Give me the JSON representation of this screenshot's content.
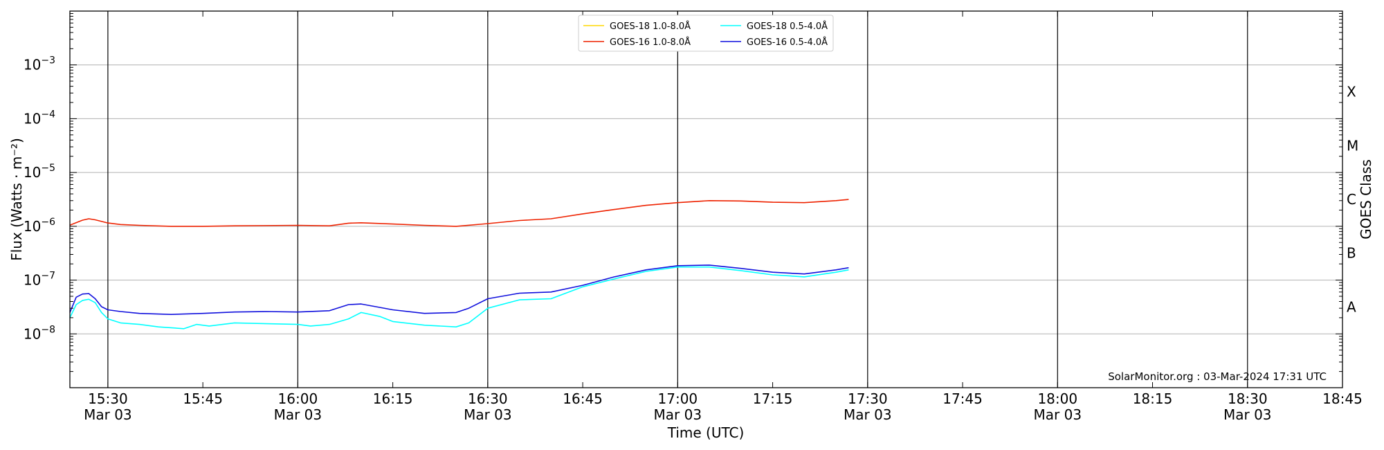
{
  "chart_data": {
    "type": "line",
    "xlabel": "Time (UTC)",
    "ylabel": "Flux (Watts · m⁻²)",
    "ylabel_right": "GOES Class",
    "credit": "SolarMonitor.org : 03-Mar-2024 17:31 UTC",
    "x_range": [
      "15:24",
      "18:45"
    ],
    "y_scale": "log",
    "ylim": [
      1e-09,
      0.01
    ],
    "grid": "horizontal lines at decades 1e-8..1e-3; vertical lines every 30 min",
    "legend_position": "top-center",
    "x_ticks": [
      {
        "t": "15:30",
        "label": "15:30",
        "date": "Mar 03"
      },
      {
        "t": "15:45",
        "label": "15:45",
        "date": ""
      },
      {
        "t": "16:00",
        "label": "16:00",
        "date": "Mar 03"
      },
      {
        "t": "16:15",
        "label": "16:15",
        "date": ""
      },
      {
        "t": "16:30",
        "label": "16:30",
        "date": "Mar 03"
      },
      {
        "t": "16:45",
        "label": "16:45",
        "date": ""
      },
      {
        "t": "17:00",
        "label": "17:00",
        "date": "Mar 03"
      },
      {
        "t": "17:15",
        "label": "17:15",
        "date": ""
      },
      {
        "t": "17:30",
        "label": "17:30",
        "date": "Mar 03"
      },
      {
        "t": "17:45",
        "label": "17:45",
        "date": ""
      },
      {
        "t": "18:00",
        "label": "18:00",
        "date": "Mar 03"
      },
      {
        "t": "18:15",
        "label": "18:15",
        "date": ""
      },
      {
        "t": "18:30",
        "label": "18:30",
        "date": "Mar 03"
      },
      {
        "t": "18:45",
        "label": "18:45",
        "date": ""
      }
    ],
    "y_ticks": [
      {
        "value": 1e-08,
        "base": "10",
        "exp": "−8"
      },
      {
        "value": 1e-07,
        "base": "10",
        "exp": "−7"
      },
      {
        "value": 1e-06,
        "base": "10",
        "exp": "−6"
      },
      {
        "value": 1e-05,
        "base": "10",
        "exp": "−5"
      },
      {
        "value": 0.0001,
        "base": "10",
        "exp": "−4"
      },
      {
        "value": 0.001,
        "base": "10",
        "exp": "−3"
      }
    ],
    "goes_classes": [
      {
        "label": "A",
        "value": 3.16e-08
      },
      {
        "label": "B",
        "value": 3.16e-07
      },
      {
        "label": "C",
        "value": 3.16e-06
      },
      {
        "label": "M",
        "value": 3.16e-05
      },
      {
        "label": "X",
        "value": 0.000316
      }
    ],
    "series": [
      {
        "name": "GOES-18 1.0-8.0Å",
        "color": "#ffd700",
        "x": [],
        "y": []
      },
      {
        "name": "GOES-16 1.0-8.0Å",
        "color": "#ee2200",
        "x": [
          "15:24",
          "15:26",
          "15:27",
          "15:28",
          "15:30",
          "15:32",
          "15:35",
          "15:40",
          "15:45",
          "15:50",
          "16:00",
          "16:05",
          "16:08",
          "16:10",
          "16:15",
          "16:20",
          "16:25",
          "16:30",
          "16:35",
          "16:40",
          "16:45",
          "16:50",
          "16:55",
          "17:00",
          "17:05",
          "17:10",
          "17:15",
          "17:20",
          "17:25",
          "17:27"
        ],
        "y": [
          1.05e-06,
          1.3e-06,
          1.38e-06,
          1.32e-06,
          1.15e-06,
          1.08e-06,
          1.04e-06,
          1e-06,
          1e-06,
          1.02e-06,
          1.04e-06,
          1.02e-06,
          1.14e-06,
          1.16e-06,
          1.1e-06,
          1.04e-06,
          1e-06,
          1.12e-06,
          1.28e-06,
          1.38e-06,
          1.7e-06,
          2.05e-06,
          2.45e-06,
          2.75e-06,
          3e-06,
          2.95e-06,
          2.8e-06,
          2.75e-06,
          3e-06,
          3.15e-06
        ]
      },
      {
        "name": "GOES-18 0.5-4.0Å",
        "color": "#00ffff",
        "x": [
          "15:24",
          "15:25",
          "15:26",
          "15:27",
          "15:28",
          "15:29",
          "15:30",
          "15:32",
          "15:35",
          "15:38",
          "15:40",
          "15:42",
          "15:44",
          "15:46",
          "15:50",
          "16:00",
          "16:02",
          "16:05",
          "16:08",
          "16:10",
          "16:13",
          "16:15",
          "16:20",
          "16:25",
          "16:27",
          "16:30",
          "16:35",
          "16:40",
          "16:45",
          "16:50",
          "16:55",
          "17:00",
          "17:05",
          "17:10",
          "17:15",
          "17:20",
          "17:25",
          "17:27"
        ],
        "y": [
          2e-08,
          3.5e-08,
          4.2e-08,
          4.4e-08,
          3.8e-08,
          2.5e-08,
          1.9e-08,
          1.6e-08,
          1.5e-08,
          1.35e-08,
          1.3e-08,
          1.25e-08,
          1.5e-08,
          1.4e-08,
          1.6e-08,
          1.5e-08,
          1.4e-08,
          1.5e-08,
          1.9e-08,
          2.5e-08,
          2.1e-08,
          1.7e-08,
          1.45e-08,
          1.35e-08,
          1.6e-08,
          3e-08,
          4.3e-08,
          4.5e-08,
          7.5e-08,
          1.05e-07,
          1.45e-07,
          1.75e-07,
          1.75e-07,
          1.5e-07,
          1.25e-07,
          1.15e-07,
          1.4e-07,
          1.55e-07
        ]
      },
      {
        "name": "GOES-16 0.5-4.0Å",
        "color": "#1010dd",
        "x": [
          "15:24",
          "15:25",
          "15:26",
          "15:27",
          "15:28",
          "15:29",
          "15:30",
          "15:32",
          "15:35",
          "15:40",
          "15:45",
          "15:50",
          "15:55",
          "16:00",
          "16:05",
          "16:08",
          "16:10",
          "16:13",
          "16:15",
          "16:20",
          "16:25",
          "16:27",
          "16:30",
          "16:35",
          "16:40",
          "16:45",
          "16:50",
          "16:55",
          "17:00",
          "17:05",
          "17:10",
          "17:15",
          "17:20",
          "17:25",
          "17:27"
        ],
        "y": [
          2.5e-08,
          4.8e-08,
          5.5e-08,
          5.6e-08,
          4.5e-08,
          3.2e-08,
          2.8e-08,
          2.6e-08,
          2.4e-08,
          2.3e-08,
          2.4e-08,
          2.55e-08,
          2.6e-08,
          2.55e-08,
          2.7e-08,
          3.5e-08,
          3.6e-08,
          3.1e-08,
          2.8e-08,
          2.4e-08,
          2.5e-08,
          3e-08,
          4.5e-08,
          5.7e-08,
          6e-08,
          8e-08,
          1.15e-07,
          1.55e-07,
          1.85e-07,
          1.9e-07,
          1.65e-07,
          1.4e-07,
          1.3e-07,
          1.55e-07,
          1.7e-07
        ]
      }
    ]
  }
}
